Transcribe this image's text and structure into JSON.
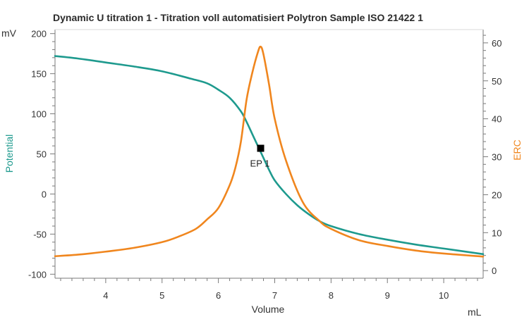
{
  "chart_data": {
    "type": "line",
    "title": "Dynamic U titration 1 - Titration voll automatisiert Polytron Sample ISO 21422  1",
    "xlabel": "Volume",
    "x_unit": "mL",
    "y_left_label": "Potential",
    "y_left_unit": "mV",
    "y_right_label": "ERC",
    "xlim": [
      3.1,
      10.7
    ],
    "y_left_lim": [
      -105,
      205
    ],
    "y_right_lim": [
      -2,
      63.5
    ],
    "x_ticks": [
      4,
      5,
      6,
      7,
      8,
      9,
      10
    ],
    "y_left_ticks": [
      -100,
      -50,
      0,
      50,
      100,
      150,
      200
    ],
    "y_right_ticks": [
      0,
      10,
      20,
      30,
      40,
      50,
      60
    ],
    "grid": false,
    "series": [
      {
        "name": "Potential",
        "axis": "left",
        "color": "#1e9a8e",
        "x": [
          3.1,
          3.5,
          4.0,
          4.5,
          5.0,
          5.5,
          5.8,
          6.0,
          6.2,
          6.4,
          6.5,
          6.6,
          6.7,
          6.8,
          6.9,
          7.0,
          7.2,
          7.4,
          7.6,
          7.8,
          8.0,
          8.5,
          9.0,
          9.5,
          10.0,
          10.7
        ],
        "values": [
          172,
          169,
          164,
          159,
          153,
          144,
          138,
          130,
          120,
          103,
          90,
          75,
          60,
          45,
          30,
          17,
          0,
          -14,
          -25,
          -34,
          -40,
          -50,
          -57,
          -63,
          -68,
          -75
        ]
      },
      {
        "name": "ERC",
        "axis": "right",
        "color": "#f0861e",
        "x": [
          3.1,
          3.5,
          4.0,
          4.5,
          5.0,
          5.3,
          5.6,
          5.8,
          6.0,
          6.2,
          6.3,
          6.4,
          6.5,
          6.6,
          6.7,
          6.75,
          6.8,
          6.9,
          7.0,
          7.2,
          7.5,
          7.8,
          8.0,
          8.5,
          9.0,
          9.5,
          10.0,
          10.7
        ],
        "values": [
          3.8,
          4.2,
          5.0,
          6.0,
          7.5,
          9.0,
          11.0,
          13.5,
          16.5,
          22.5,
          27.0,
          34.0,
          45.0,
          52.0,
          57.5,
          59.0,
          57.0,
          49.0,
          40.0,
          29.0,
          18.0,
          13.0,
          11.0,
          8.0,
          6.5,
          5.3,
          4.5,
          3.7
        ]
      }
    ],
    "markers": [
      {
        "label": "EP 1",
        "x": 6.75,
        "y": 57,
        "axis": "left"
      }
    ]
  }
}
